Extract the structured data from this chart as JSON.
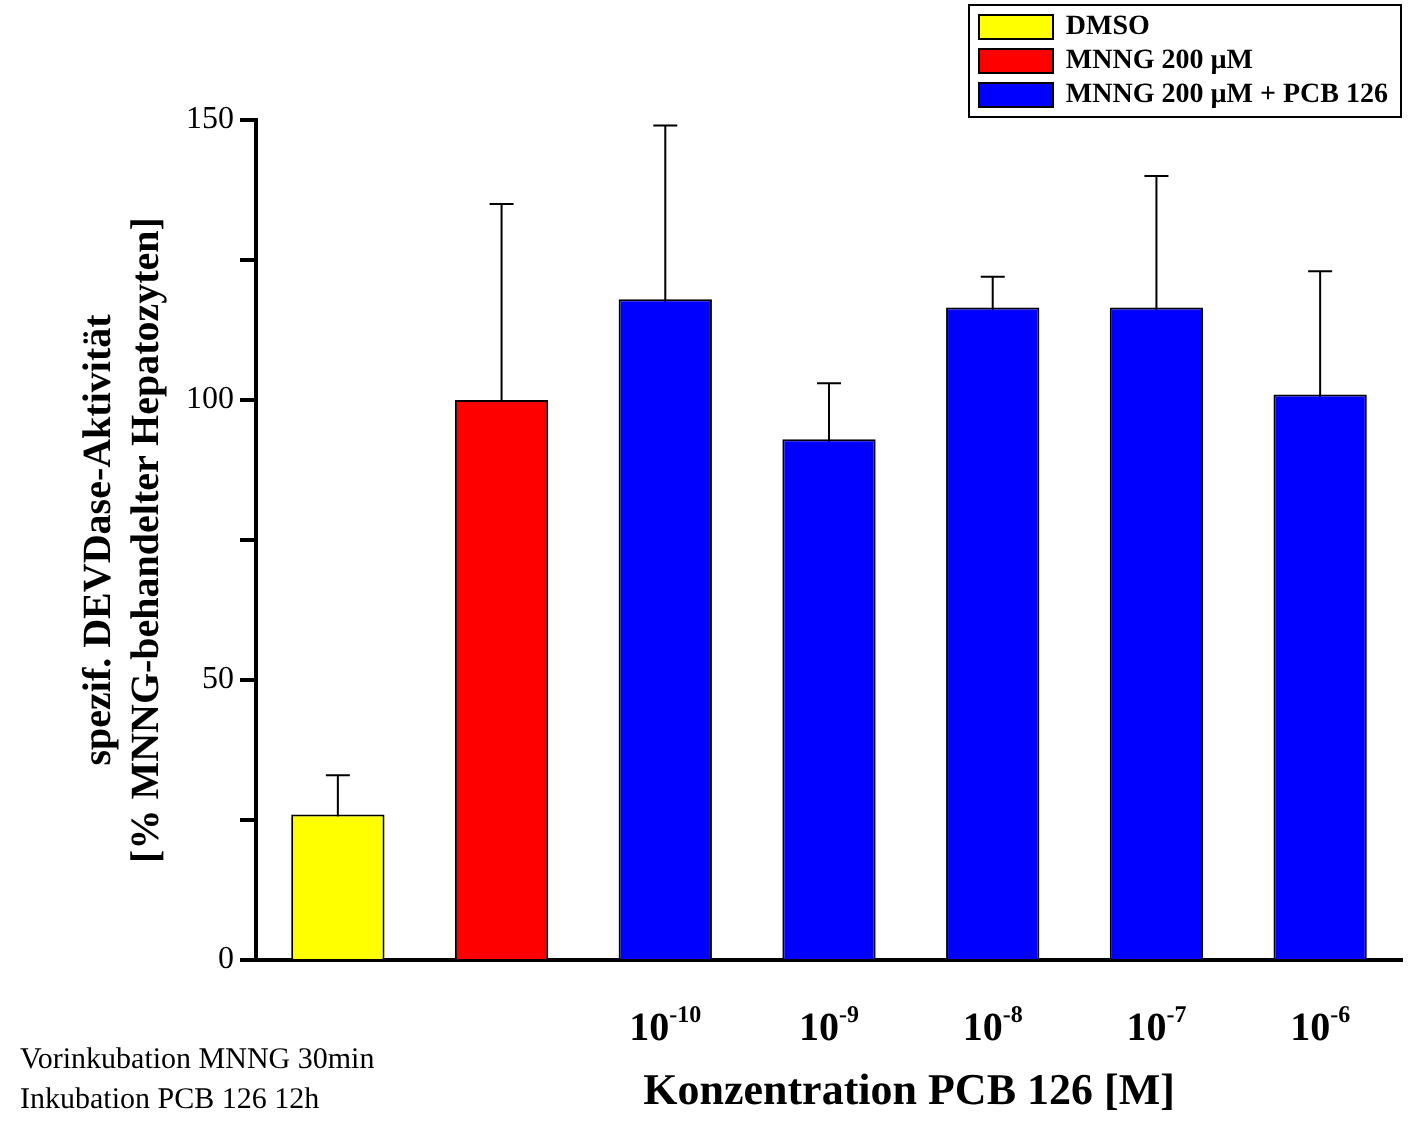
{
  "chart_data": {
    "type": "bar",
    "xlabel": "Konzentration PCB 126 [M]",
    "ylabel": "spezif. DEVDase-Aktivität\n[% MNNG-behandelter Hepatozyten]",
    "categories": [
      null,
      null,
      "10$^{-10}$",
      "10$^{-9}$",
      "10$^{-8}$",
      "10$^{-7}$",
      "10$^{-6}$"
    ],
    "series": [
      {
        "name": "DMSO",
        "color": "#ffff00",
        "values": [
          26,
          null,
          null,
          null,
          null,
          null,
          null
        ],
        "errors": [
          7,
          null,
          null,
          null,
          null,
          null,
          null
        ]
      },
      {
        "name": "MNNG 200 µM",
        "color": "#ff0000",
        "values": [
          null,
          100,
          null,
          null,
          null,
          null,
          null
        ],
        "errors": [
          null,
          35,
          null,
          null,
          null,
          null,
          null
        ]
      },
      {
        "name": "MNNG 200 µM + PCB 126",
        "color": "#0000ff",
        "values": [
          null,
          null,
          118,
          93,
          116.5,
          116.5,
          101
        ],
        "errors": [
          null,
          null,
          31,
          10,
          5.5,
          23.5,
          22
        ]
      }
    ],
    "ylim": [
      0,
      150
    ],
    "yticks": [
      0,
      {
        "value": 25,
        "label": null
      },
      50,
      {
        "value": 75,
        "label": null
      },
      100,
      {
        "value": 125,
        "label": null
      },
      150
    ],
    "grid": false,
    "legend": "top right",
    "annotations": [
      "Vorinkubation MNNG 30min",
      "Inkubation PCB 126 12h"
    ]
  }
}
